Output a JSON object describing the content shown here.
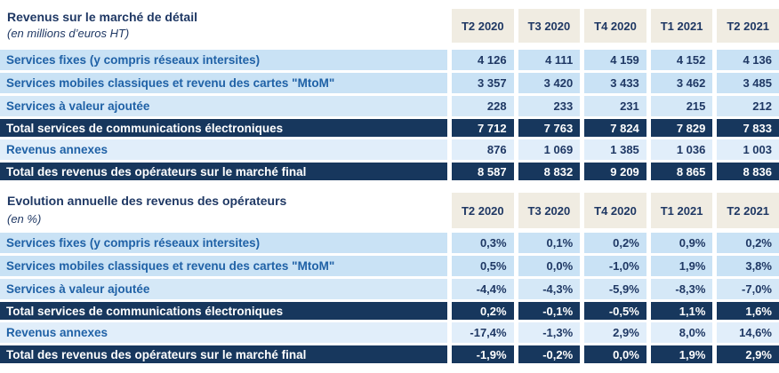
{
  "colors": {
    "total_row_bg": "#17375d",
    "header_bg": "#f0ece2",
    "row_bg_primary": "#c9e2f5",
    "row_bg_light": "#d5e8f7",
    "row_bg_lighter": "#e1eefa",
    "label_text": "#1f61a6",
    "value_text": "#1f3864",
    "total_text": "#ffffff"
  },
  "tables": [
    {
      "title": "Revenus sur le marché de détail",
      "subtitle": "(en millions d’euros HT)",
      "columns": [
        "T2 2020",
        "T3 2020",
        "T4 2020",
        "T1 2021",
        "T2 2021"
      ],
      "rows": [
        {
          "label": "Services fixes (y compris réseaux intersites)",
          "values": [
            "4 126",
            "4 111",
            "4 159",
            "4 152",
            "4 136"
          ]
        },
        {
          "label": "Services mobiles classiques et revenu des cartes \"MtoM\"",
          "values": [
            "3 357",
            "3 420",
            "3 433",
            "3 462",
            "3 485"
          ]
        },
        {
          "label": "Services à valeur ajoutée",
          "values": [
            "228",
            "233",
            "231",
            "215",
            "212"
          ]
        },
        {
          "label": "Total services de communications électroniques",
          "values": [
            "7 712",
            "7 763",
            "7 824",
            "7 829",
            "7 833"
          ]
        },
        {
          "label": "Revenus annexes",
          "values": [
            "876",
            "1 069",
            "1 385",
            "1 036",
            "1 003"
          ]
        },
        {
          "label": "Total des revenus des opérateurs sur le marché final",
          "values": [
            "8 587",
            "8 832",
            "9 209",
            "8 865",
            "8 836"
          ]
        }
      ]
    },
    {
      "title": "Evolution annuelle des revenus des opérateurs",
      "subtitle": "(en %)",
      "columns": [
        "T2 2020",
        "T3 2020",
        "T4 2020",
        "T1 2021",
        "T2 2021"
      ],
      "rows": [
        {
          "label": "Services fixes (y compris réseaux intersites)",
          "values": [
            "0,3%",
            "0,1%",
            "0,2%",
            "0,9%",
            "0,2%"
          ]
        },
        {
          "label": "Services mobiles classiques et revenu des cartes \"MtoM\"",
          "values": [
            "0,5%",
            "0,0%",
            "-1,0%",
            "1,9%",
            "3,8%"
          ]
        },
        {
          "label": "Services à valeur ajoutée",
          "values": [
            "-4,4%",
            "-4,3%",
            "-5,9%",
            "-8,3%",
            "-7,0%"
          ]
        },
        {
          "label": "Total services de communications électroniques",
          "values": [
            "0,2%",
            "-0,1%",
            "-0,5%",
            "1,1%",
            "1,6%"
          ]
        },
        {
          "label": "Revenus annexes",
          "values": [
            "-17,4%",
            "-1,3%",
            "2,9%",
            "8,0%",
            "14,6%"
          ]
        },
        {
          "label": "Total des revenus des opérateurs sur le marché final",
          "values": [
            "-1,9%",
            "-0,2%",
            "0,0%",
            "1,9%",
            "2,9%"
          ]
        }
      ]
    }
  ]
}
